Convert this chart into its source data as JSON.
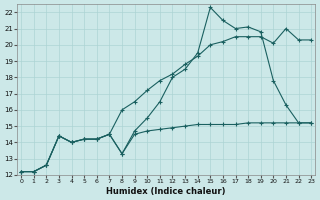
{
  "xlabel": "Humidex (Indice chaleur)",
  "background_color": "#cce8e8",
  "grid_color": "#add4d4",
  "line_color": "#1a6060",
  "xlim": [
    -0.3,
    23.3
  ],
  "ylim": [
    12,
    22.5
  ],
  "yticks": [
    12,
    13,
    14,
    15,
    16,
    17,
    18,
    19,
    20,
    21,
    22
  ],
  "xticks": [
    0,
    1,
    2,
    3,
    4,
    5,
    6,
    7,
    8,
    9,
    10,
    11,
    12,
    13,
    14,
    15,
    16,
    17,
    18,
    19,
    20,
    21,
    22,
    23
  ],
  "line1_x": [
    0,
    1,
    2,
    3,
    4,
    5,
    6,
    7,
    8,
    9,
    10,
    11,
    12,
    13,
    14,
    15,
    16,
    17,
    18,
    19,
    20,
    21,
    22,
    23
  ],
  "line1_y": [
    12.2,
    12.2,
    12.6,
    14.4,
    14.0,
    14.2,
    14.2,
    14.5,
    16.0,
    16.5,
    17.2,
    17.8,
    18.2,
    18.8,
    19.3,
    20.0,
    20.2,
    20.5,
    20.5,
    20.5,
    20.1,
    21.0,
    20.3,
    20.3
  ],
  "line2_x": [
    0,
    1,
    2,
    3,
    4,
    5,
    6,
    7,
    8,
    9,
    10,
    11,
    12,
    13,
    14,
    15,
    16,
    17,
    18,
    19,
    20,
    21,
    22,
    23
  ],
  "line2_y": [
    12.2,
    12.2,
    12.6,
    14.4,
    14.0,
    14.2,
    14.2,
    14.5,
    13.3,
    14.7,
    15.5,
    16.5,
    18.0,
    18.5,
    19.5,
    22.3,
    21.5,
    21.0,
    21.1,
    20.8,
    17.8,
    16.3,
    15.2,
    15.2
  ],
  "line3_x": [
    0,
    1,
    2,
    3,
    4,
    5,
    6,
    7,
    8,
    9,
    10,
    11,
    12,
    13,
    14,
    15,
    16,
    17,
    18,
    19,
    20,
    21,
    22,
    23
  ],
  "line3_y": [
    12.2,
    12.2,
    12.6,
    14.4,
    14.0,
    14.2,
    14.2,
    14.5,
    13.3,
    14.5,
    14.7,
    14.8,
    14.9,
    15.0,
    15.1,
    15.1,
    15.1,
    15.1,
    15.2,
    15.2,
    15.2,
    15.2,
    15.2,
    15.2
  ]
}
